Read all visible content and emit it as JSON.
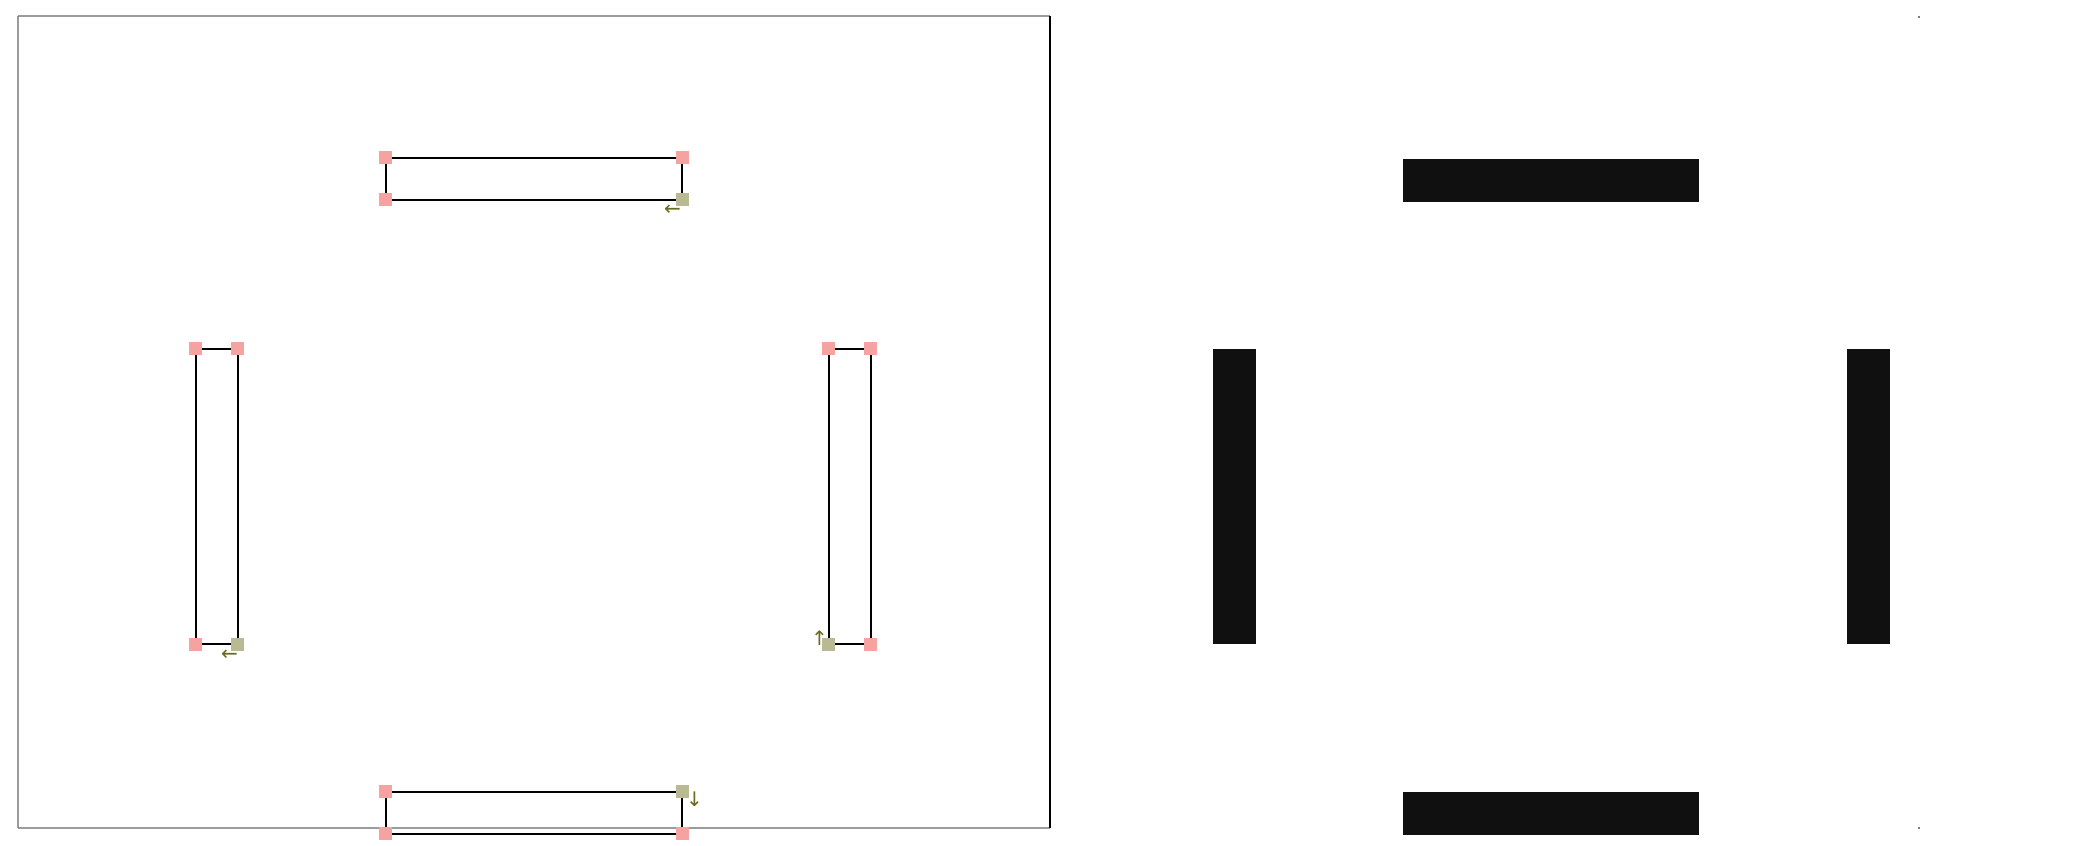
{
  "canvas": {
    "background": "#ffffff",
    "frame_color": "#7a7a7a"
  },
  "editor": {
    "outline_color": "#000000",
    "corner_handle_color": "#f4a3a0",
    "start_handle_color": "#b9b994",
    "arrow_color": "#6b6b1f"
  },
  "preview": {
    "fill_color": "#101010"
  },
  "contours": [
    {
      "name": "top-bar",
      "start_corner": "bottom-right",
      "direction_arrow": "←"
    },
    {
      "name": "left-bar",
      "start_corner": "bottom-right",
      "direction_arrow": "←"
    },
    {
      "name": "right-bar",
      "start_corner": "bottom-left",
      "direction_arrow": "↑"
    },
    {
      "name": "bottom-bar",
      "start_corner": "top-right",
      "direction_arrow": "↓"
    }
  ]
}
